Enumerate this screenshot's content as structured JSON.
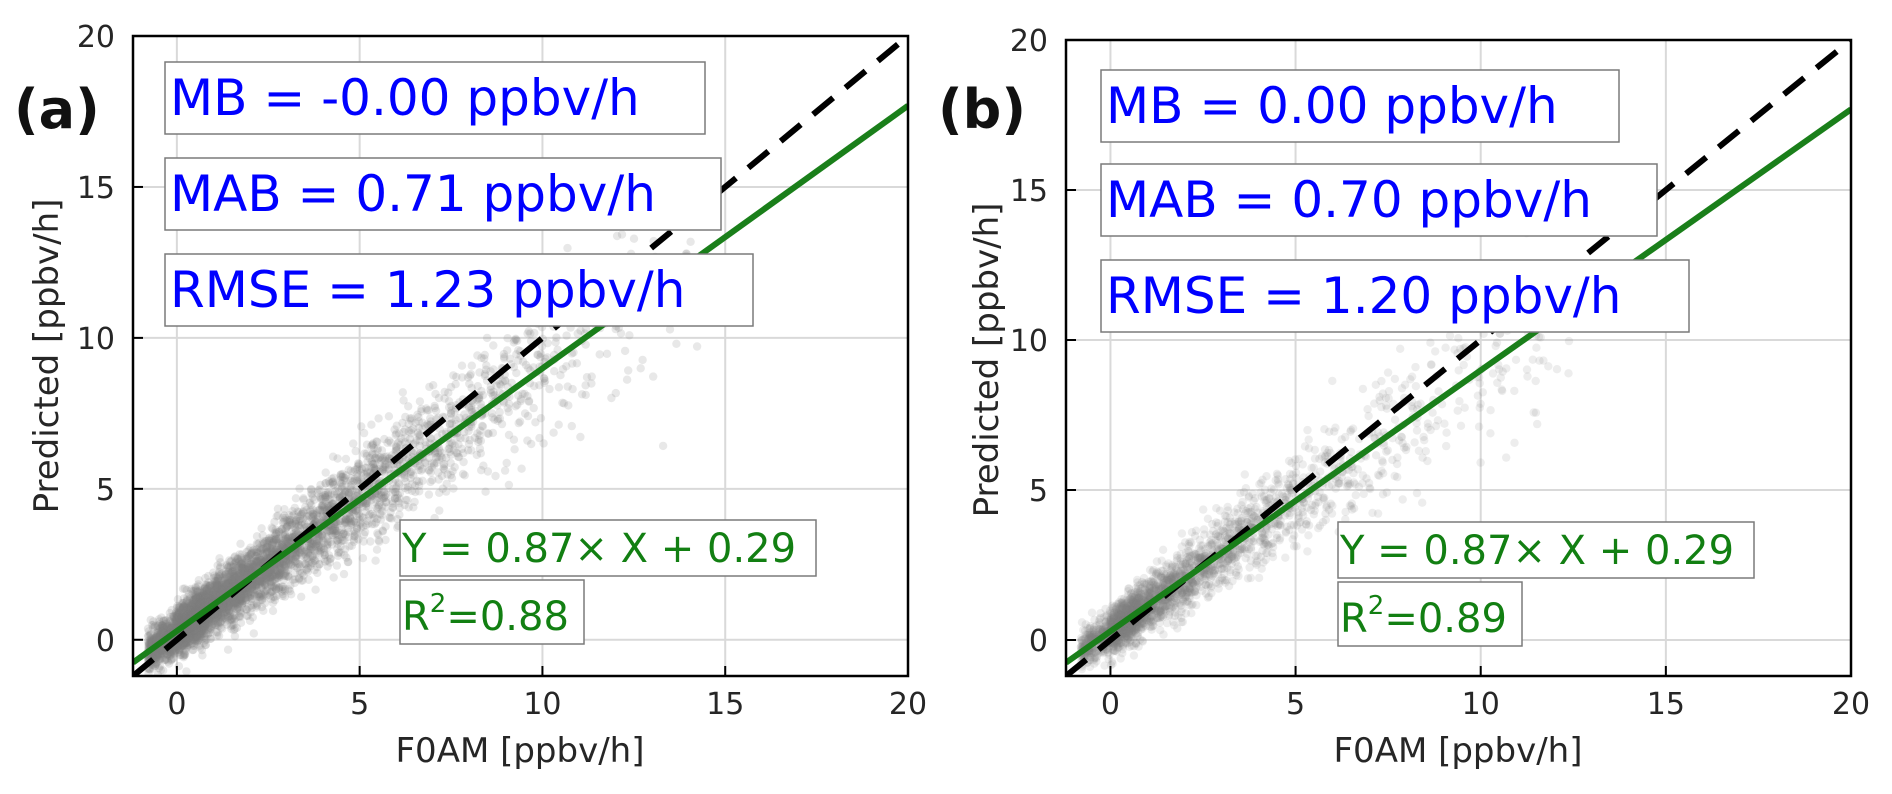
{
  "colors": {
    "points": "#808080",
    "one_to_one": "#000000",
    "fit_line": "#1a7f1a",
    "stat_text": "#0000ff",
    "fit_text": "#127f12",
    "grid": "#d9d9d9"
  },
  "chart_data": [
    {
      "type": "scatter",
      "panel_label": "(a)",
      "xlabel": "F0AM [ppbv/h]",
      "ylabel": "Predicted [ppbv/h]",
      "xlim": [
        -1.2,
        20
      ],
      "ylim": [
        -1.2,
        20
      ],
      "xticks": [
        0,
        5,
        10,
        15,
        20
      ],
      "yticks": [
        0,
        5,
        10,
        15,
        20
      ],
      "xtick_labels": [
        "0",
        "5",
        "10",
        "15",
        "20"
      ],
      "ytick_labels": [
        "0",
        "5",
        "10",
        "15",
        "20"
      ],
      "grid": true,
      "reference_line": {
        "style": "dashed",
        "slope": 1,
        "intercept": 0
      },
      "fit": {
        "slope": 0.87,
        "intercept": 0.29,
        "equation": "Y = 0.87× X + 0.29",
        "r2_prefix": "R",
        "r2_exp": "2",
        "r2_value": "=0.88"
      },
      "stats": [
        "MB = -0.00 ppbv/h",
        "MAB = 0.71 ppbv/h",
        "RMSE = 1.23 ppbv/h"
      ],
      "point_cloud": {
        "density": "high",
        "x_range": [
          -1,
          20
        ],
        "y_range": [
          -1,
          17
        ]
      }
    },
    {
      "type": "scatter",
      "panel_label": "(b)",
      "xlabel": "F0AM [ppbv/h]",
      "ylabel": "Predicted [ppbv/h]",
      "xlim": [
        -1.2,
        20
      ],
      "ylim": [
        -1.2,
        20
      ],
      "xticks": [
        0,
        5,
        10,
        15,
        20
      ],
      "yticks": [
        0,
        5,
        10,
        15,
        20
      ],
      "xtick_labels": [
        "0",
        "5",
        "10",
        "15",
        "20"
      ],
      "ytick_labels": [
        "0",
        "5",
        "10",
        "15",
        "20"
      ],
      "grid": true,
      "reference_line": {
        "style": "dashed",
        "slope": 1,
        "intercept": 0
      },
      "fit": {
        "slope": 0.87,
        "intercept": 0.29,
        "equation": "Y = 0.87× X + 0.29",
        "r2_prefix": "R",
        "r2_exp": "2",
        "r2_value": "=0.89"
      },
      "stats": [
        "MB = 0.00 ppbv/h",
        "MAB = 0.70 ppbv/h",
        "RMSE = 1.20 ppbv/h"
      ],
      "point_cloud": {
        "density": "low",
        "x_range": [
          -1,
          20
        ],
        "y_range": [
          -1,
          16
        ]
      }
    }
  ]
}
